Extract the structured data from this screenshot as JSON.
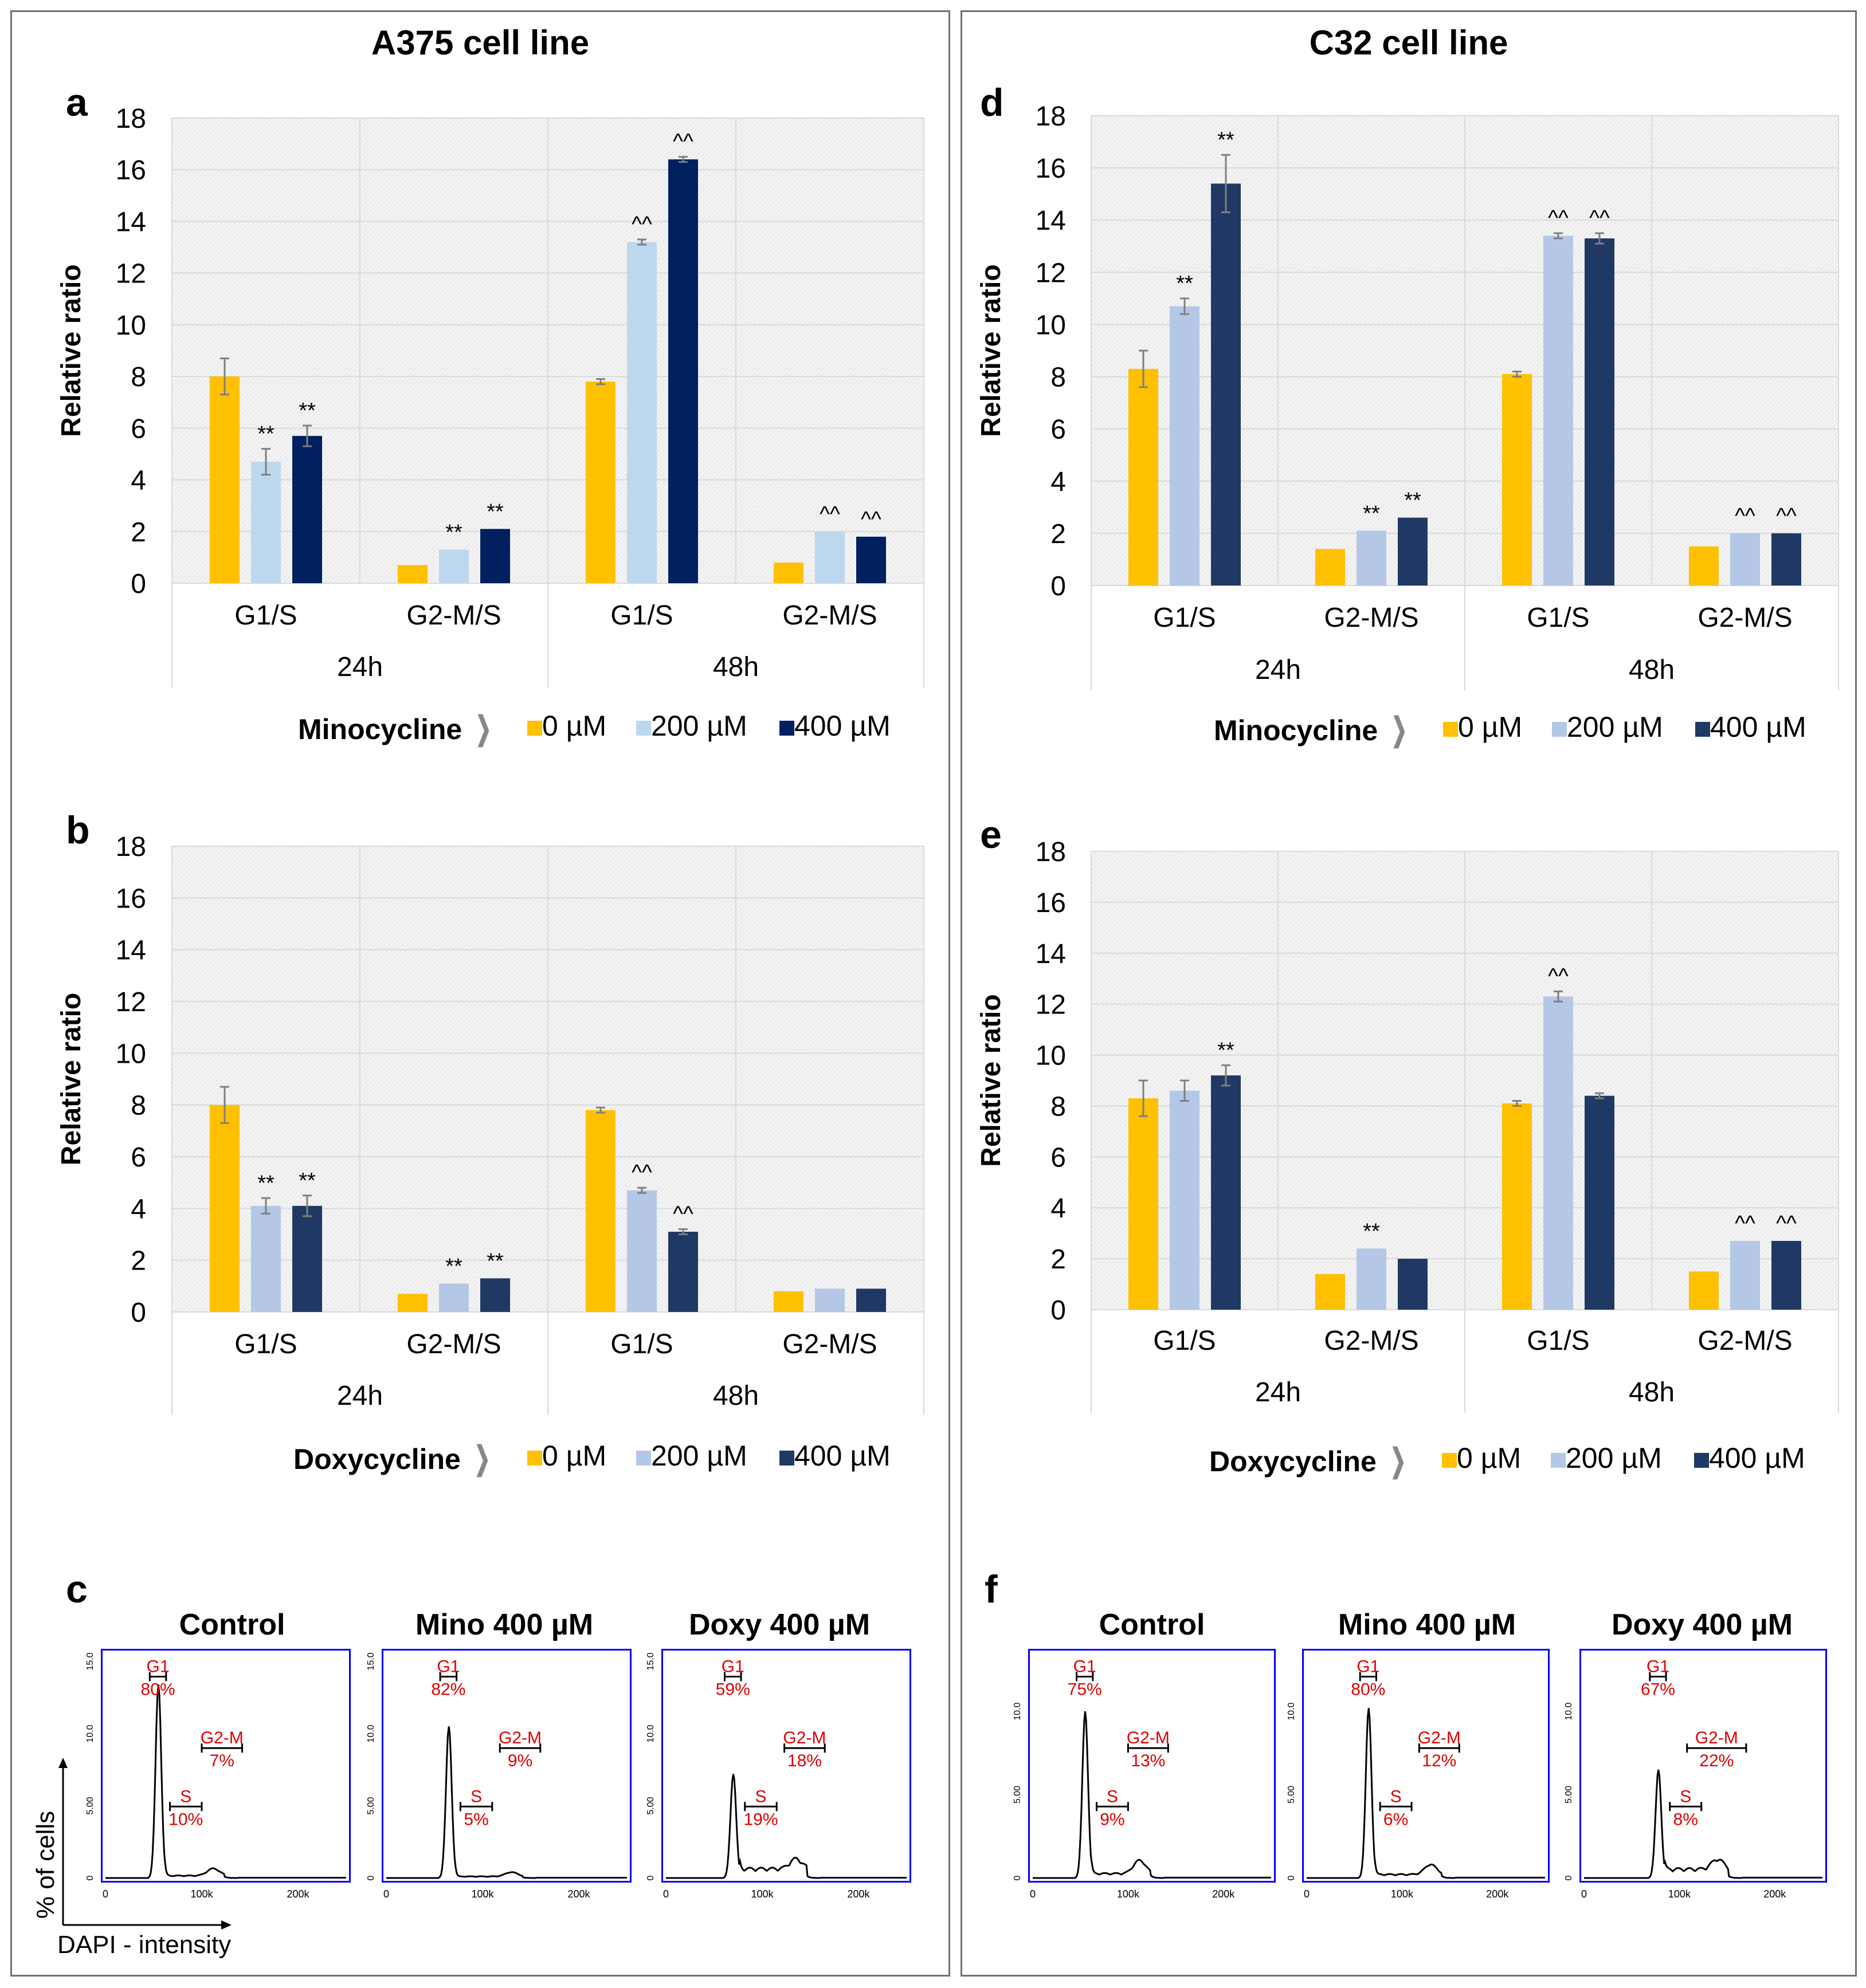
{
  "panels_titles": {
    "left": "A375 cell line",
    "right": "C32 cell line"
  },
  "colors": {
    "dose0": "#FFC000",
    "dose200_mino_a375": "#BDD7EE",
    "dose400_mino_a375": "#002060",
    "dose200": "#B4C7E7",
    "dose400": "#203864",
    "grid": "#D9D9D9",
    "plot_bg": "#F2F2F2",
    "hist_frame": "#0000FF",
    "hist_label": "#E00000"
  },
  "chart_data": [
    {
      "id": "a",
      "type": "bar",
      "label": "a",
      "ylabel": "Relative ratio",
      "ylim": [
        0,
        18
      ],
      "yticks": [
        0,
        2,
        4,
        6,
        8,
        10,
        12,
        14,
        16,
        18
      ],
      "categories": [
        "G1/S",
        "G2-M/S",
        "G1/S",
        "G2-M/S"
      ],
      "groups": [
        "24h",
        "48h"
      ],
      "legend_drug": "Minocycline",
      "legend_doses": [
        "0 µM",
        "200 µM",
        "400 µM"
      ],
      "series": [
        {
          "name": "0 µM",
          "color": "#FFC000",
          "values": [
            8.0,
            0.7,
            7.8,
            0.8
          ],
          "errors": [
            0.7,
            0.0,
            0.1,
            0.0
          ],
          "marks": [
            "",
            "",
            "",
            ""
          ]
        },
        {
          "name": "200 µM",
          "color": "#BDD7EE",
          "values": [
            4.7,
            1.3,
            13.2,
            2.0
          ],
          "errors": [
            0.5,
            0.0,
            0.1,
            0.0
          ],
          "marks": [
            "**",
            "**",
            "^^",
            "^^"
          ]
        },
        {
          "name": "400 µM",
          "color": "#002060",
          "values": [
            5.7,
            2.1,
            16.4,
            1.8
          ],
          "errors": [
            0.4,
            0.0,
            0.1,
            0.0
          ],
          "marks": [
            "**",
            "**",
            "^^",
            "^^"
          ]
        }
      ]
    },
    {
      "id": "b",
      "type": "bar",
      "label": "b",
      "ylabel": "Relative ratio",
      "ylim": [
        0,
        18
      ],
      "yticks": [
        0,
        2,
        4,
        6,
        8,
        10,
        12,
        14,
        16,
        18
      ],
      "categories": [
        "G1/S",
        "G2-M/S",
        "G1/S",
        "G2-M/S"
      ],
      "groups": [
        "24h",
        "48h"
      ],
      "legend_drug": "Doxycycline",
      "legend_doses": [
        "0 µM",
        "200 µM",
        "400 µM"
      ],
      "series": [
        {
          "name": "0 µM",
          "color": "#FFC000",
          "values": [
            8.0,
            0.7,
            7.8,
            0.8
          ],
          "errors": [
            0.7,
            0.0,
            0.1,
            0.0
          ],
          "marks": [
            "",
            "",
            "",
            ""
          ]
        },
        {
          "name": "200 µM",
          "color": "#B4C7E7",
          "values": [
            4.1,
            1.1,
            4.7,
            0.9
          ],
          "errors": [
            0.3,
            0.0,
            0.1,
            0.0
          ],
          "marks": [
            "**",
            "**",
            "^^",
            ""
          ]
        },
        {
          "name": "400 µM",
          "color": "#203864",
          "values": [
            4.1,
            1.3,
            3.1,
            0.9
          ],
          "errors": [
            0.4,
            0.0,
            0.1,
            0.0
          ],
          "marks": [
            "**",
            "**",
            "^^",
            ""
          ]
        }
      ]
    },
    {
      "id": "d",
      "type": "bar",
      "label": "d",
      "ylabel": "Relative ratio",
      "ylim": [
        0,
        18
      ],
      "yticks": [
        0,
        2,
        4,
        6,
        8,
        10,
        12,
        14,
        16,
        18
      ],
      "categories": [
        "G1/S",
        "G2-M/S",
        "G1/S",
        "G2-M/S"
      ],
      "groups": [
        "24h",
        "48h"
      ],
      "legend_drug": "Minocycline",
      "legend_doses": [
        "0 µM",
        "200 µM",
        "400 µM"
      ],
      "series": [
        {
          "name": "0 µM",
          "color": "#FFC000",
          "values": [
            8.3,
            1.4,
            8.1,
            1.5
          ],
          "errors": [
            0.7,
            0.0,
            0.1,
            0.0
          ],
          "marks": [
            "",
            "",
            "",
            ""
          ]
        },
        {
          "name": "200 µM",
          "color": "#B4C7E7",
          "values": [
            10.7,
            2.1,
            13.4,
            2.0
          ],
          "errors": [
            0.3,
            0.0,
            0.1,
            0.0
          ],
          "marks": [
            "**",
            "**",
            "^^",
            "^^"
          ]
        },
        {
          "name": "400 µM",
          "color": "#203864",
          "values": [
            15.4,
            2.6,
            13.3,
            2.0
          ],
          "errors": [
            1.1,
            0.0,
            0.2,
            0.0
          ],
          "marks": [
            "**",
            "**",
            "^^",
            "^^"
          ]
        }
      ]
    },
    {
      "id": "e",
      "type": "bar",
      "label": "e",
      "ylabel": "Relative ratio",
      "ylim": [
        0,
        18
      ],
      "yticks": [
        0,
        2,
        4,
        6,
        8,
        10,
        12,
        14,
        16,
        18
      ],
      "categories": [
        "G1/S",
        "G2-M/S",
        "G1/S",
        "G2-M/S"
      ],
      "groups": [
        "24h",
        "48h"
      ],
      "legend_drug": "Doxycycline",
      "legend_doses": [
        "0 µM",
        "200 µM",
        "400 µM"
      ],
      "series": [
        {
          "name": "0 µM",
          "color": "#FFC000",
          "values": [
            8.3,
            1.4,
            8.1,
            1.5
          ],
          "errors": [
            0.7,
            0.0,
            0.1,
            0.0
          ],
          "marks": [
            "",
            "",
            "",
            ""
          ]
        },
        {
          "name": "200 µM",
          "color": "#B4C7E7",
          "values": [
            8.6,
            2.4,
            12.3,
            2.7
          ],
          "errors": [
            0.4,
            0.0,
            0.2,
            0.0
          ],
          "marks": [
            "",
            "**",
            "^^",
            "^^"
          ]
        },
        {
          "name": "400 µM",
          "color": "#203864",
          "values": [
            9.2,
            2.0,
            8.4,
            2.7
          ],
          "errors": [
            0.4,
            0.0,
            0.1,
            0.0
          ],
          "marks": [
            "**",
            "",
            "",
            "^^"
          ]
        }
      ]
    }
  ],
  "histograms": {
    "c": {
      "label": "c",
      "axis_y": "% of cells",
      "axis_x": "DAPI - intensity",
      "plots": [
        {
          "title": "Control",
          "yticks": [
            "0",
            "5.00",
            "10.0",
            "15.0"
          ],
          "ymax": 15,
          "xticks": [
            "0",
            "100k",
            "200k"
          ],
          "peak_x": 55000,
          "peak_y": 13.4,
          "g2_x": 112000,
          "g2_y": 0.5,
          "s_level": 0.15,
          "gates": [
            {
              "name": "G1",
              "pct": "80%"
            },
            {
              "name": "S",
              "pct": "10%"
            },
            {
              "name": "G2-M",
              "pct": "7%"
            }
          ]
        },
        {
          "title": "Mino 400 µM",
          "yticks": [
            "0",
            "5.00",
            "10.0",
            "15.0"
          ],
          "ymax": 15,
          "xticks": [
            "0",
            "100k",
            "200k"
          ],
          "peak_x": 65000,
          "peak_y": 10.5,
          "g2_x": 130000,
          "g2_y": 0.3,
          "s_level": 0.1,
          "gates": [
            {
              "name": "G1",
              "pct": "82%"
            },
            {
              "name": "S",
              "pct": "5%"
            },
            {
              "name": "G2-M",
              "pct": "9%"
            }
          ]
        },
        {
          "title": "Doxy 400 µM",
          "yticks": [
            "0",
            "5.00",
            "10.0",
            "15.0"
          ],
          "ymax": 15,
          "xticks": [
            "0",
            "100k",
            "200k"
          ],
          "peak_x": 70000,
          "peak_y": 7.2,
          "g2_x": 135000,
          "g2_y": 0.7,
          "s_level": 0.6,
          "gates": [
            {
              "name": "G1",
              "pct": "59%"
            },
            {
              "name": "S",
              "pct": "19%"
            },
            {
              "name": "G2-M",
              "pct": "18%"
            }
          ]
        }
      ]
    },
    "f": {
      "label": "f",
      "plots": [
        {
          "title": "Control",
          "yticks": [
            "0",
            "5.00",
            "10.0"
          ],
          "ymax": 13,
          "xticks": [
            "0",
            "100k",
            "200k"
          ],
          "peak_x": 55000,
          "peak_y": 10.0,
          "g2_x": 112000,
          "g2_y": 0.8,
          "s_level": 0.25,
          "gates": [
            {
              "name": "G1",
              "pct": "75%"
            },
            {
              "name": "S",
              "pct": "9%"
            },
            {
              "name": "G2-M",
              "pct": "13%"
            }
          ]
        },
        {
          "title": "Mino 400 µM",
          "yticks": [
            "0",
            "5.00",
            "10.0"
          ],
          "ymax": 13,
          "xticks": [
            "0",
            "100k",
            "200k"
          ],
          "peak_x": 65000,
          "peak_y": 10.2,
          "g2_x": 130000,
          "g2_y": 0.6,
          "s_level": 0.2,
          "gates": [
            {
              "name": "G1",
              "pct": "80%"
            },
            {
              "name": "S",
              "pct": "6%"
            },
            {
              "name": "G2-M",
              "pct": "12%"
            }
          ]
        },
        {
          "title": "Doxy 400 µM",
          "yticks": [
            "0",
            "5.00",
            "10.0"
          ],
          "ymax": 13,
          "xticks": [
            "0",
            "100k",
            "200k"
          ],
          "peak_x": 78000,
          "peak_y": 6.5,
          "g2_x": 140000,
          "g2_y": 0.6,
          "s_level": 0.5,
          "gates": [
            {
              "name": "G1",
              "pct": "67%"
            },
            {
              "name": "S",
              "pct": "8%"
            },
            {
              "name": "G2-M",
              "pct": "22%"
            }
          ]
        }
      ]
    }
  }
}
